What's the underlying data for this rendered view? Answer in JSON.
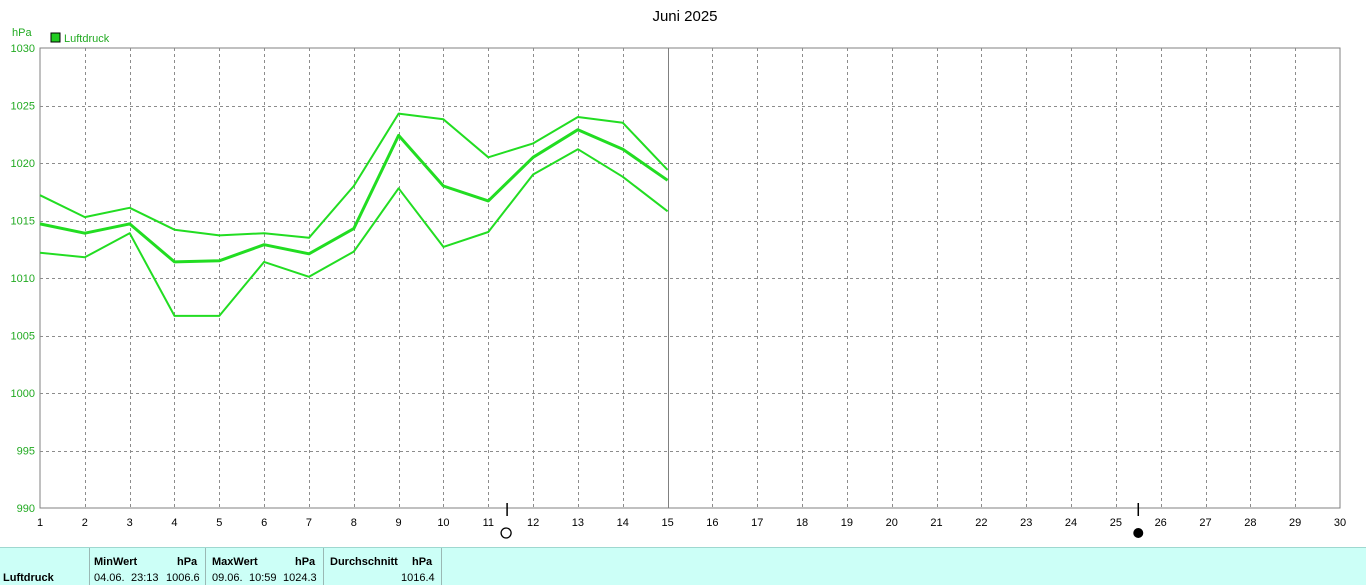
{
  "chart_data": {
    "type": "line",
    "title": "Juni 2025",
    "ylabel": "hPa",
    "xlabel": "",
    "xlim": [
      1,
      30
    ],
    "ylim": [
      990,
      1030
    ],
    "x_ticks": [
      1,
      2,
      3,
      4,
      5,
      6,
      7,
      8,
      9,
      10,
      11,
      12,
      13,
      14,
      15,
      16,
      17,
      18,
      19,
      20,
      21,
      22,
      23,
      24,
      25,
      26,
      27,
      28,
      29,
      30
    ],
    "y_ticks": [
      990,
      995,
      1000,
      1005,
      1010,
      1015,
      1020,
      1025,
      1030
    ],
    "grid": true,
    "legend": {
      "position": "top-left",
      "entries": [
        {
          "label": "Luftdruck",
          "color": "#22cc22"
        }
      ]
    },
    "x": [
      1,
      2,
      3,
      4,
      5,
      6,
      7,
      8,
      9,
      10,
      11,
      12,
      13,
      14,
      15
    ],
    "series": [
      {
        "role": "max",
        "color": "#22dd22",
        "values": [
          1017.2,
          1015.3,
          1016.1,
          1014.2,
          1013.7,
          1013.9,
          1013.5,
          1018.0,
          1024.3,
          1023.8,
          1020.5,
          1021.7,
          1024.0,
          1023.5,
          1019.4
        ]
      },
      {
        "role": "mean",
        "color": "#22dd22",
        "values": [
          1014.7,
          1013.9,
          1014.7,
          1011.4,
          1011.5,
          1012.9,
          1012.1,
          1014.3,
          1022.4,
          1018.0,
          1016.7,
          1020.5,
          1022.9,
          1021.2,
          1018.5
        ]
      },
      {
        "role": "min",
        "color": "#22dd22",
        "values": [
          1012.2,
          1011.8,
          1013.9,
          1006.7,
          1006.7,
          1011.4,
          1010.1,
          1012.3,
          1017.8,
          1012.7,
          1014.0,
          1019.0,
          1021.2,
          1018.8,
          1015.8
        ]
      }
    ],
    "current_day_marker": 15,
    "moon_markers": [
      {
        "x": 11.42,
        "phase": "full-moon"
      },
      {
        "x": 25.5,
        "phase": "new-moon"
      }
    ]
  },
  "stats": {
    "row_label": "Luftdruck",
    "min": {
      "header": "MinWert",
      "unit": "hPa",
      "date": "04.06.",
      "time": "23:13",
      "value": "1006.6"
    },
    "max": {
      "header": "MaxWert",
      "unit": "hPa",
      "date": "09.06.",
      "time": "10:59",
      "value": "1024.3"
    },
    "avg": {
      "header": "Durchschnitt",
      "unit": "hPa",
      "value": "1016.4"
    }
  }
}
